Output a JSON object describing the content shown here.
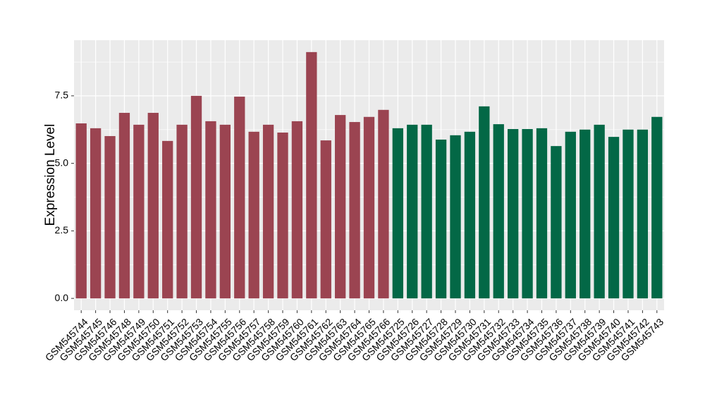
{
  "chart_data": {
    "type": "bar",
    "y_label": "Expression Level",
    "categories": [
      "GSM545744",
      "GSM545745",
      "GSM545746",
      "GSM545748",
      "GSM545749",
      "GSM545750",
      "GSM545751",
      "GSM545752",
      "GSM545753",
      "GSM545754",
      "GSM545755",
      "GSM545756",
      "GSM545757",
      "GSM545758",
      "GSM545759",
      "GSM545760",
      "GSM545761",
      "GSM545762",
      "GSM545763",
      "GSM545764",
      "GSM545765",
      "GSM545766",
      "GSM545725",
      "GSM545726",
      "GSM545727",
      "GSM545728",
      "GSM545729",
      "GSM545730",
      "GSM545731",
      "GSM545732",
      "GSM545733",
      "GSM545734",
      "GSM545735",
      "GSM545736",
      "GSM545737",
      "GSM545738",
      "GSM545739",
      "GSM545740",
      "GSM545741",
      "GSM545742",
      "GSM545743"
    ],
    "values": [
      6.48,
      6.3,
      6.01,
      6.87,
      6.43,
      6.87,
      5.83,
      6.43,
      7.5,
      6.56,
      6.43,
      7.47,
      6.17,
      6.43,
      6.14,
      6.56,
      9.12,
      5.85,
      6.79,
      6.53,
      6.72,
      6.98,
      6.3,
      6.43,
      6.43,
      5.88,
      6.04,
      6.17,
      7.11,
      6.45,
      6.27,
      6.27,
      6.3,
      5.64,
      6.17,
      6.25,
      6.43,
      5.98,
      6.25,
      6.25,
      6.72
    ],
    "colors": [
      "#9b4451",
      "#9b4451",
      "#9b4451",
      "#9b4451",
      "#9b4451",
      "#9b4451",
      "#9b4451",
      "#9b4451",
      "#9b4451",
      "#9b4451",
      "#9b4451",
      "#9b4451",
      "#9b4451",
      "#9b4451",
      "#9b4451",
      "#9b4451",
      "#9b4451",
      "#9b4451",
      "#9b4451",
      "#9b4451",
      "#9b4451",
      "#9b4451",
      "#036846",
      "#036846",
      "#036846",
      "#036846",
      "#036846",
      "#036846",
      "#036846",
      "#036846",
      "#036846",
      "#036846",
      "#036846",
      "#036846",
      "#036846",
      "#036846",
      "#036846",
      "#036846",
      "#036846",
      "#036846",
      "#036846"
    ],
    "ylim": [
      -0.44,
      9.56
    ],
    "yticks": [
      {
        "value": 0,
        "label": "0.0"
      },
      {
        "value": 2.5,
        "label": "2.5"
      },
      {
        "value": 5,
        "label": "5.0"
      },
      {
        "value": 7.5,
        "label": "7.5"
      }
    ],
    "grid": true
  }
}
